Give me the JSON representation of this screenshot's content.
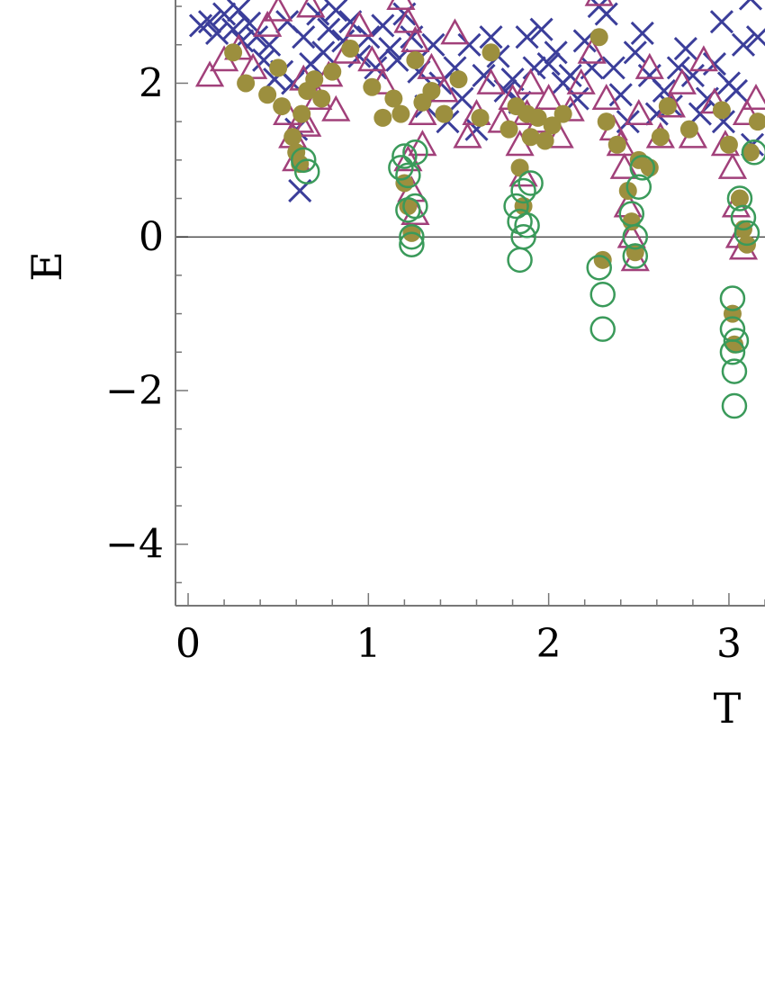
{
  "chart_data": {
    "type": "scatter",
    "xlabel": "T",
    "ylabel": "E",
    "x_ticks": [
      "0",
      "1",
      "2",
      "3"
    ],
    "y_ticks": [
      "−4",
      "−2",
      "0",
      "2"
    ],
    "xlim": [
      -0.07,
      3.2
    ],
    "ylim": [
      -4.8,
      3.2
    ],
    "grid": false,
    "zero_line": true,
    "series": [
      {
        "marker": "cross",
        "color": "#3b3e9a",
        "points": [
          [
            0.07,
            2.75
          ],
          [
            0.12,
            2.8
          ],
          [
            0.16,
            2.65
          ],
          [
            0.2,
            2.9
          ],
          [
            0.25,
            2.7
          ],
          [
            0.28,
            2.95
          ],
          [
            0.3,
            2.55
          ],
          [
            0.34,
            2.78
          ],
          [
            0.38,
            2.6
          ],
          [
            0.42,
            2.3
          ],
          [
            0.45,
            2.5
          ],
          [
            0.48,
            2.05
          ],
          [
            0.52,
            2.15
          ],
          [
            0.55,
            2.8
          ],
          [
            0.58,
            2.0
          ],
          [
            0.6,
            1.4
          ],
          [
            0.62,
            0.6
          ],
          [
            0.64,
            2.6
          ],
          [
            0.68,
            2.25
          ],
          [
            0.72,
            2.9
          ],
          [
            0.75,
            2.4
          ],
          [
            0.78,
            2.7
          ],
          [
            0.82,
            2.95
          ],
          [
            0.86,
            2.55
          ],
          [
            0.9,
            2.8
          ],
          [
            0.95,
            2.35
          ],
          [
            1.0,
            2.6
          ],
          [
            1.04,
            2.2
          ],
          [
            1.08,
            2.75
          ],
          [
            1.12,
            2.45
          ],
          [
            1.16,
            2.3
          ],
          [
            1.2,
            2.9
          ],
          [
            1.24,
            2.6
          ],
          [
            1.28,
            2.15
          ],
          [
            1.32,
            1.7
          ],
          [
            1.36,
            2.5
          ],
          [
            1.4,
            2.0
          ],
          [
            1.44,
            1.5
          ],
          [
            1.48,
            2.2
          ],
          [
            1.52,
            1.8
          ],
          [
            1.56,
            2.5
          ],
          [
            1.6,
            1.4
          ],
          [
            1.64,
            2.1
          ],
          [
            1.68,
            2.6
          ],
          [
            1.72,
            2.35
          ],
          [
            1.76,
            1.9
          ],
          [
            1.8,
            2.05
          ],
          [
            1.84,
            1.75
          ],
          [
            1.88,
            2.6
          ],
          [
            1.92,
            2.2
          ],
          [
            1.96,
            2.7
          ],
          [
            2.0,
            2.25
          ],
          [
            2.04,
            2.4
          ],
          [
            2.08,
            2.0
          ],
          [
            2.12,
            2.1
          ],
          [
            2.16,
            1.8
          ],
          [
            2.2,
            2.55
          ],
          [
            2.24,
            2.2
          ],
          [
            2.28,
            3.0
          ],
          [
            2.32,
            2.9
          ],
          [
            2.36,
            2.2
          ],
          [
            2.4,
            1.85
          ],
          [
            2.44,
            1.5
          ],
          [
            2.48,
            2.4
          ],
          [
            2.52,
            2.65
          ],
          [
            2.56,
            2.1
          ],
          [
            2.6,
            1.6
          ],
          [
            2.64,
            1.9
          ],
          [
            2.68,
            1.7
          ],
          [
            2.72,
            2.2
          ],
          [
            2.76,
            2.45
          ],
          [
            2.8,
            2.1
          ],
          [
            2.84,
            1.6
          ],
          [
            2.88,
            1.8
          ],
          [
            2.92,
            2.25
          ],
          [
            2.96,
            2.8
          ],
          [
            3.0,
            2.0
          ],
          [
            3.04,
            1.9
          ],
          [
            3.08,
            2.5
          ],
          [
            3.12,
            3.1
          ],
          [
            3.16,
            2.6
          ],
          [
            2.97,
            1.5
          ],
          [
            3.13,
            1.2
          ]
        ]
      },
      {
        "marker": "triangle",
        "color": "#a1407a",
        "points": [
          [
            0.12,
            2.1
          ],
          [
            0.2,
            2.3
          ],
          [
            0.28,
            2.45
          ],
          [
            0.36,
            2.2
          ],
          [
            0.44,
            2.75
          ],
          [
            0.5,
            2.95
          ],
          [
            0.55,
            1.6
          ],
          [
            0.58,
            1.3
          ],
          [
            0.6,
            1.0
          ],
          [
            0.62,
            1.5
          ],
          [
            0.64,
            2.05
          ],
          [
            0.66,
            1.45
          ],
          [
            0.68,
            3.0
          ],
          [
            0.72,
            1.8
          ],
          [
            0.78,
            2.1
          ],
          [
            0.82,
            1.65
          ],
          [
            0.88,
            2.4
          ],
          [
            0.95,
            2.75
          ],
          [
            1.02,
            2.3
          ],
          [
            1.08,
            2.0
          ],
          [
            1.18,
            3.1
          ],
          [
            1.22,
            2.8
          ],
          [
            1.26,
            2.55
          ],
          [
            1.3,
            1.6
          ],
          [
            1.22,
            1.0
          ],
          [
            1.24,
            0.6
          ],
          [
            1.26,
            0.3
          ],
          [
            1.3,
            1.2
          ],
          [
            1.35,
            2.2
          ],
          [
            1.42,
            1.9
          ],
          [
            1.48,
            2.65
          ],
          [
            1.55,
            1.3
          ],
          [
            1.6,
            1.6
          ],
          [
            1.68,
            2.0
          ],
          [
            1.74,
            1.5
          ],
          [
            1.8,
            1.8
          ],
          [
            1.84,
            1.2
          ],
          [
            1.86,
            0.8
          ],
          [
            1.88,
            1.6
          ],
          [
            1.9,
            2.0
          ],
          [
            1.95,
            1.5
          ],
          [
            2.0,
            1.8
          ],
          [
            2.06,
            1.3
          ],
          [
            2.12,
            1.65
          ],
          [
            2.18,
            2.0
          ],
          [
            2.24,
            2.4
          ],
          [
            2.28,
            3.15
          ],
          [
            2.32,
            1.8
          ],
          [
            2.36,
            1.4
          ],
          [
            2.4,
            1.2
          ],
          [
            2.42,
            0.9
          ],
          [
            2.44,
            0.4
          ],
          [
            2.46,
            0.0
          ],
          [
            2.48,
            -0.3
          ],
          [
            2.5,
            1.6
          ],
          [
            2.56,
            2.2
          ],
          [
            2.62,
            1.3
          ],
          [
            2.68,
            1.7
          ],
          [
            2.74,
            2.0
          ],
          [
            2.8,
            1.3
          ],
          [
            2.86,
            2.3
          ],
          [
            2.92,
            1.75
          ],
          [
            2.98,
            1.2
          ],
          [
            3.02,
            0.9
          ],
          [
            3.04,
            0.4
          ],
          [
            3.06,
            0.0
          ],
          [
            3.08,
            -0.15
          ],
          [
            3.1,
            1.6
          ],
          [
            3.15,
            1.8
          ]
        ]
      },
      {
        "marker": "filled-circle",
        "color": "#9c8f3e",
        "points": [
          [
            0.25,
            2.4
          ],
          [
            0.32,
            2.0
          ],
          [
            0.44,
            1.85
          ],
          [
            0.5,
            2.2
          ],
          [
            0.52,
            1.7
          ],
          [
            0.58,
            1.3
          ],
          [
            0.6,
            1.1
          ],
          [
            0.62,
            0.95
          ],
          [
            0.63,
            1.6
          ],
          [
            0.66,
            1.9
          ],
          [
            0.7,
            2.05
          ],
          [
            0.74,
            1.8
          ],
          [
            0.8,
            2.15
          ],
          [
            0.9,
            2.45
          ],
          [
            1.02,
            1.95
          ],
          [
            1.08,
            1.55
          ],
          [
            1.14,
            1.8
          ],
          [
            1.18,
            1.6
          ],
          [
            1.2,
            0.7
          ],
          [
            1.22,
            0.4
          ],
          [
            1.24,
            0.05
          ],
          [
            1.26,
            2.3
          ],
          [
            1.3,
            1.75
          ],
          [
            1.35,
            1.9
          ],
          [
            1.42,
            1.6
          ],
          [
            1.5,
            2.05
          ],
          [
            1.62,
            1.55
          ],
          [
            1.68,
            2.4
          ],
          [
            1.78,
            1.4
          ],
          [
            1.82,
            1.7
          ],
          [
            1.84,
            0.9
          ],
          [
            1.86,
            0.4
          ],
          [
            1.88,
            1.6
          ],
          [
            1.9,
            1.3
          ],
          [
            1.94,
            1.55
          ],
          [
            1.98,
            1.25
          ],
          [
            2.02,
            1.45
          ],
          [
            2.08,
            1.6
          ],
          [
            2.28,
            2.6
          ],
          [
            2.3,
            -0.3
          ],
          [
            2.32,
            1.5
          ],
          [
            2.38,
            1.2
          ],
          [
            2.44,
            0.6
          ],
          [
            2.46,
            0.2
          ],
          [
            2.48,
            -0.2
          ],
          [
            2.5,
            1.0
          ],
          [
            2.56,
            0.9
          ],
          [
            2.62,
            1.3
          ],
          [
            2.66,
            1.7
          ],
          [
            2.78,
            1.4
          ],
          [
            2.96,
            1.65
          ],
          [
            3.0,
            1.2
          ],
          [
            3.02,
            -1.0
          ],
          [
            3.03,
            -1.4
          ],
          [
            3.06,
            0.5
          ],
          [
            3.08,
            0.1
          ],
          [
            3.1,
            -0.1
          ],
          [
            3.12,
            1.1
          ],
          [
            3.16,
            1.5
          ]
        ]
      },
      {
        "marker": "open-circle",
        "color": "#3a9a5a",
        "points": [
          [
            0.64,
            1.0
          ],
          [
            0.66,
            0.85
          ],
          [
            1.18,
            0.9
          ],
          [
            1.2,
            1.05
          ],
          [
            1.22,
            0.8
          ],
          [
            1.22,
            0.35
          ],
          [
            1.24,
            0.0
          ],
          [
            1.24,
            -0.1
          ],
          [
            1.26,
            0.4
          ],
          [
            1.26,
            1.1
          ],
          [
            1.82,
            0.4
          ],
          [
            1.84,
            0.2
          ],
          [
            1.84,
            -0.3
          ],
          [
            1.86,
            0.0
          ],
          [
            1.88,
            0.15
          ],
          [
            1.86,
            0.6
          ],
          [
            1.9,
            0.7
          ],
          [
            2.28,
            -0.4
          ],
          [
            2.3,
            -0.75
          ],
          [
            2.3,
            -1.2
          ],
          [
            2.46,
            0.3
          ],
          [
            2.48,
            0.0
          ],
          [
            2.48,
            -0.25
          ],
          [
            2.5,
            0.65
          ],
          [
            2.52,
            0.9
          ],
          [
            3.02,
            -0.8
          ],
          [
            3.02,
            -1.2
          ],
          [
            3.02,
            -1.5
          ],
          [
            3.03,
            -1.75
          ],
          [
            3.03,
            -2.2
          ],
          [
            3.04,
            -1.35
          ],
          [
            3.06,
            0.5
          ],
          [
            3.08,
            0.25
          ],
          [
            3.1,
            0.05
          ],
          [
            3.14,
            1.1
          ]
        ]
      }
    ]
  }
}
